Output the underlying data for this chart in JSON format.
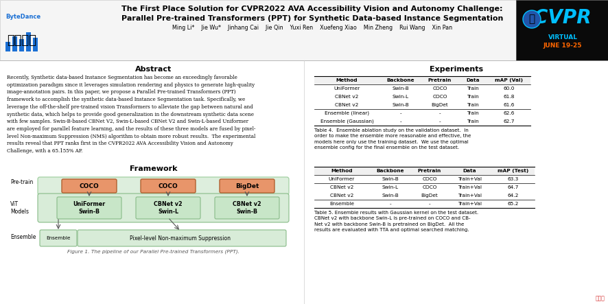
{
  "title_line1": "The First Place Solution for CVPR2022 AVA Accessibility Vision and Autonomy Challenge:",
  "title_line2": "Parallel Pre-trained Transformers (PPT) for Synthetic Data-based Instance Segmentation",
  "authors": "Ming Li*    Jie Wu*    Jinhang Cai    Jie Qin    Yuxi Ren    Xuefeng Xiao    Min Zheng    Rui Wang    Xin Pan",
  "abstract_title": "Abstract",
  "abstract_text": "Recently, Synthetic data-based Instance Segmentation has become an exceedingly favorable\noptimization paradigm since it leverages simulation rendering and physics to generate high-quality\nimage-annotation pairs. In this paper, we propose a Parallel Pre-trained Transformers (PPT)\nframework to accomplish the synthetic data-based Instance Segmentation task. Specifically, we\nleverage the off-the-shelf pre-trained vision Transformers to alleviate the gap between natural and\nsynthetic data, which helps to provide good generalization in the downstream synthetic data scene\nwith few samples. Swin-B-based CBNet V2, Swin-L-based CBNet V2 and Swin-L-based Uniformer\nare employed for parallel feature learning, and the results of these three models are fused by pixel-\nlevel Non-maximum Suppression (NMS) algorithm to obtain more robust results.  The experimental\nresults reveal that PPT ranks first in the CVPR2022 AVA Accessibility Vision and Autonomy\nChallenge, with a 65.155% AP.",
  "framework_title": "Framework",
  "experiments_title": "Experiments",
  "bg_color": "#ffffff",
  "table1_header": [
    "Method",
    "Backbone",
    "Pretrain",
    "Data",
    "mAP (Val)"
  ],
  "table1_rows": [
    [
      "UniFormer",
      "Swin-B",
      "COCO",
      "Train",
      "60.0"
    ],
    [
      "CBNet v2",
      "Swin-L",
      "COCO",
      "Train",
      "61.8"
    ],
    [
      "CBNet v2",
      "Swin-B",
      "BigDet",
      "Train",
      "61.6"
    ],
    [
      "Ensemble (linear)",
      "-",
      "-",
      "Train",
      "62.6"
    ],
    [
      "Ensemble (Gaussian)",
      "-",
      "-",
      "Train",
      "62.7"
    ]
  ],
  "table4_caption": "Table 4.  Ensemble ablation study on the validation dataset.  In\norder to make the ensemble more reasonable and effective, the\nmodels here only use the training dataset.  We use the optimal\nensemble config for the final ensemble on the test dataset.",
  "table2_header": [
    "Method",
    "Backbone",
    "Pretrain",
    "Data",
    "mAP (Test)"
  ],
  "table2_rows": [
    [
      "UniFormer",
      "Swin-B",
      "COCO",
      "Train+Val",
      "63.3"
    ],
    [
      "CBNet v2",
      "Swin-L",
      "COCO",
      "Train+Val",
      "64.7"
    ],
    [
      "CBNet v2",
      "Swin-B",
      "BigDet",
      "Train+Val",
      "64.2"
    ],
    [
      "Ensemble",
      "-",
      "-",
      "Train+Val",
      "65.2"
    ]
  ],
  "table5_caption": "Table 5. Ensemble results with Gaussian kernel on the test dataset.\nCBNet v2 with backbone Swin-L is pre-trained on COCO and CB-\nNet v2 with backbone Swin-B is pretrained on BigDet.  All the\nresults are evaluated with TTA and optimal searched matching.",
  "bytedance_color": "#1a6fd4",
  "cvpr_bg": "#0a0a0a",
  "cvpr_text_color": "#00bfff",
  "cvpr_date_color": "#ff6600",
  "box_coco_color": "#e8956a",
  "box_model_fill": "#c8e6c8",
  "box_outer_fill": "#d8ecd8",
  "box_outer_edge": "#88bb88",
  "arrow_color": "#555555",
  "figure_caption": "Figure 1. The pipeline of our Parallel Pre-trained Transformers (PPT).",
  "header_bg": "#f5f5f5",
  "watermark_color": "#cc0000"
}
